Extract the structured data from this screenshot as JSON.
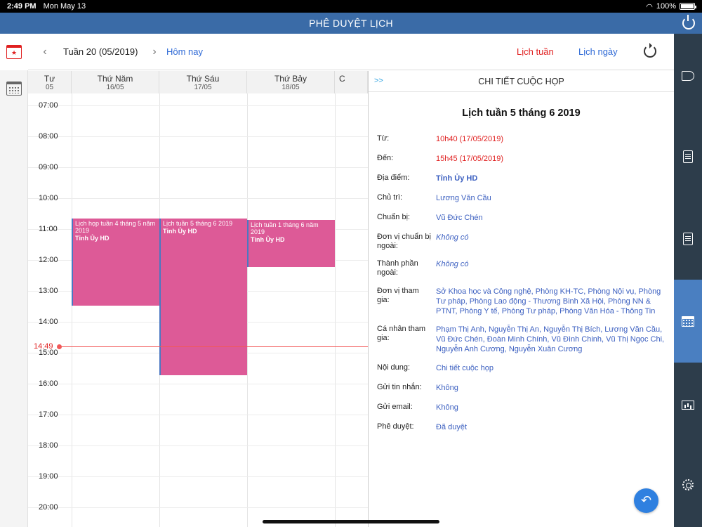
{
  "status_bar": {
    "time": "2:49 PM",
    "date": "Mon May 13",
    "battery": "100%"
  },
  "app_title": "PHÊ DUYỆT LỊCH",
  "calendar": {
    "week_label": "Tuần 20 (05/2019)",
    "prev_icon": "‹",
    "next_icon": "›",
    "today_label": "Hôm nay",
    "view_week_label": "Lịch tuần",
    "view_day_label": "Lịch ngày",
    "days": [
      {
        "name": "Tư",
        "date": "05"
      },
      {
        "name": "Thứ Năm",
        "date": "16/05"
      },
      {
        "name": "Thứ Sáu",
        "date": "17/05"
      },
      {
        "name": "Thứ Bảy",
        "date": "18/05"
      },
      {
        "name": "C",
        "date": ""
      }
    ],
    "hours": [
      "07:00",
      "08:00",
      "09:00",
      "10:00",
      "11:00",
      "12:00",
      "13:00",
      "14:00",
      "15:00",
      "16:00",
      "17:00",
      "18:00",
      "19:00",
      "20:00"
    ],
    "now_label": "14:49",
    "events": [
      {
        "title": "Lịch họp tuần 4 tháng 5 năm 2019",
        "location": "Tỉnh Ủy HD"
      },
      {
        "title": "Lịch tuần 5 tháng 6 2019",
        "location": "Tỉnh Ủy HD"
      },
      {
        "title": "Lịch tuần 1 tháng 6 năm 2019",
        "location": "Tỉnh Ủy HD"
      }
    ]
  },
  "detail": {
    "collapse_label": ">>",
    "header": "CHI TIẾT CUỘC HỌP",
    "meeting_title": "Lịch tuần 5 tháng 6 2019",
    "rows": [
      {
        "label": "Từ:",
        "value": "10h40 (17/05/2019)"
      },
      {
        "label": "Đến:",
        "value": "15h45 (17/05/2019)"
      },
      {
        "label": "Địa điểm:",
        "value": "Tỉnh Ủy HD"
      },
      {
        "label": "Chủ trì:",
        "value": "Lương Văn Cầu"
      },
      {
        "label": "Chuẩn bị:",
        "value": "Vũ Đức Chén"
      },
      {
        "label": "Đơn vị chuẩn bị ngoài:",
        "value": "Không có"
      },
      {
        "label": "Thành phần ngoài:",
        "value": "Không có"
      },
      {
        "label": "Đơn vị tham gia:",
        "value": "Sở Khoa học và Công nghệ, Phòng KH-TC, Phòng Nội vụ, Phòng Tư pháp, Phòng Lao động - Thương Binh Xã Hội, Phòng NN & PTNT, Phòng Y tế, Phòng Tư pháp, Phòng Văn Hóa - Thông Tin"
      },
      {
        "label": "Cá nhân tham gia:",
        "value": "Phạm Thị Anh, Nguyễn Thị An, Nguyễn Thị Bích, Lương Văn Cầu, Vũ Đức Chén, Đoàn Minh Chính, Vũ Đình Chinh, Vũ Thị Ngọc Chi, Nguyễn Anh Cương, Nguyễn Xuân Cương"
      },
      {
        "label": "Nội dung:",
        "value": "Chi tiết cuộc họp"
      },
      {
        "label": "Gửi tin nhắn:",
        "value": "Không"
      },
      {
        "label": "Gửi email:",
        "value": "Không"
      },
      {
        "label": "Phê duyệt:",
        "value": "Đã duyệt"
      }
    ]
  },
  "colors": {
    "appbar": "#3a6ba7",
    "event": "#dd5a97",
    "now_line": "#f25858",
    "accent_red": "#e02020",
    "link_blue": "#2f6ad6",
    "right_rail": "#2d3d4b",
    "right_rail_active": "#4a7fc1"
  },
  "icons": {
    "left_rail": [
      "calendar-star-icon",
      "calendar-grid-icon"
    ],
    "right_rail": [
      "megaphone-icon",
      "document-icon",
      "document-edit-icon",
      "calendar-icon",
      "chart-icon",
      "settings-icon"
    ],
    "fab": "back-arrow-icon",
    "power": "power-icon",
    "refresh": "refresh-icon"
  }
}
